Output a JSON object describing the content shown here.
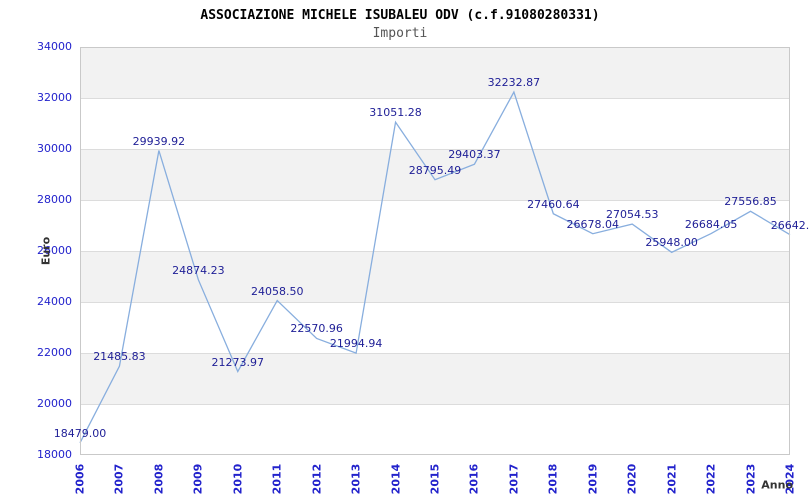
{
  "title": "ASSOCIAZIONE MICHELE ISUBALEU ODV (c.f.91080280331)",
  "subtitle": "Importi",
  "chart_data": {
    "type": "line",
    "title": "ASSOCIAZIONE MICHELE ISUBALEU ODV (c.f.91080280331)",
    "subtitle": "Importi",
    "xlabel": "Anno",
    "ylabel": "Euro",
    "categories": [
      "2006",
      "2007",
      "2008",
      "2009",
      "2010",
      "2011",
      "2012",
      "2013",
      "2014",
      "2015",
      "2016",
      "2017",
      "2018",
      "2019",
      "2020",
      "2021",
      "2022",
      "2023",
      "2024"
    ],
    "values": [
      18479.0,
      21485.83,
      29939.92,
      24874.23,
      21273.97,
      24058.5,
      22570.96,
      21994.94,
      31051.28,
      28795.49,
      29403.37,
      32232.87,
      27460.64,
      26678.04,
      27054.53,
      25948.0,
      26684.05,
      27556.85,
      26642
    ],
    "point_labels": [
      "18479.00",
      "21485.83",
      "29939.92",
      "24874.23",
      "21273.97",
      "24058.50",
      "22570.96",
      "21994.94",
      "31051.28",
      "28795.49",
      "29403.37",
      "32232.87",
      "27460.64",
      "26678.04",
      "27054.53",
      "25948.00",
      "26684.05",
      "27556.85",
      "26642."
    ],
    "ylim": [
      18000,
      34000
    ],
    "ytick_step": 2000,
    "yticks": [
      "34000",
      "32000",
      "30000",
      "28000",
      "26000",
      "24000",
      "22000",
      "20000",
      "18000"
    ],
    "grid": "horizontal alternating bands",
    "legend": "none",
    "colors": {
      "line": "#88aede",
      "point_label": "#1e1e96",
      "tick_label": "#2222cc",
      "band": "#f2f2f2",
      "gridline": "#dcdcdc",
      "plot_border": "#c9c9c9",
      "title": "#000000",
      "subtitle": "#555555",
      "axis_title": "#333333"
    }
  }
}
